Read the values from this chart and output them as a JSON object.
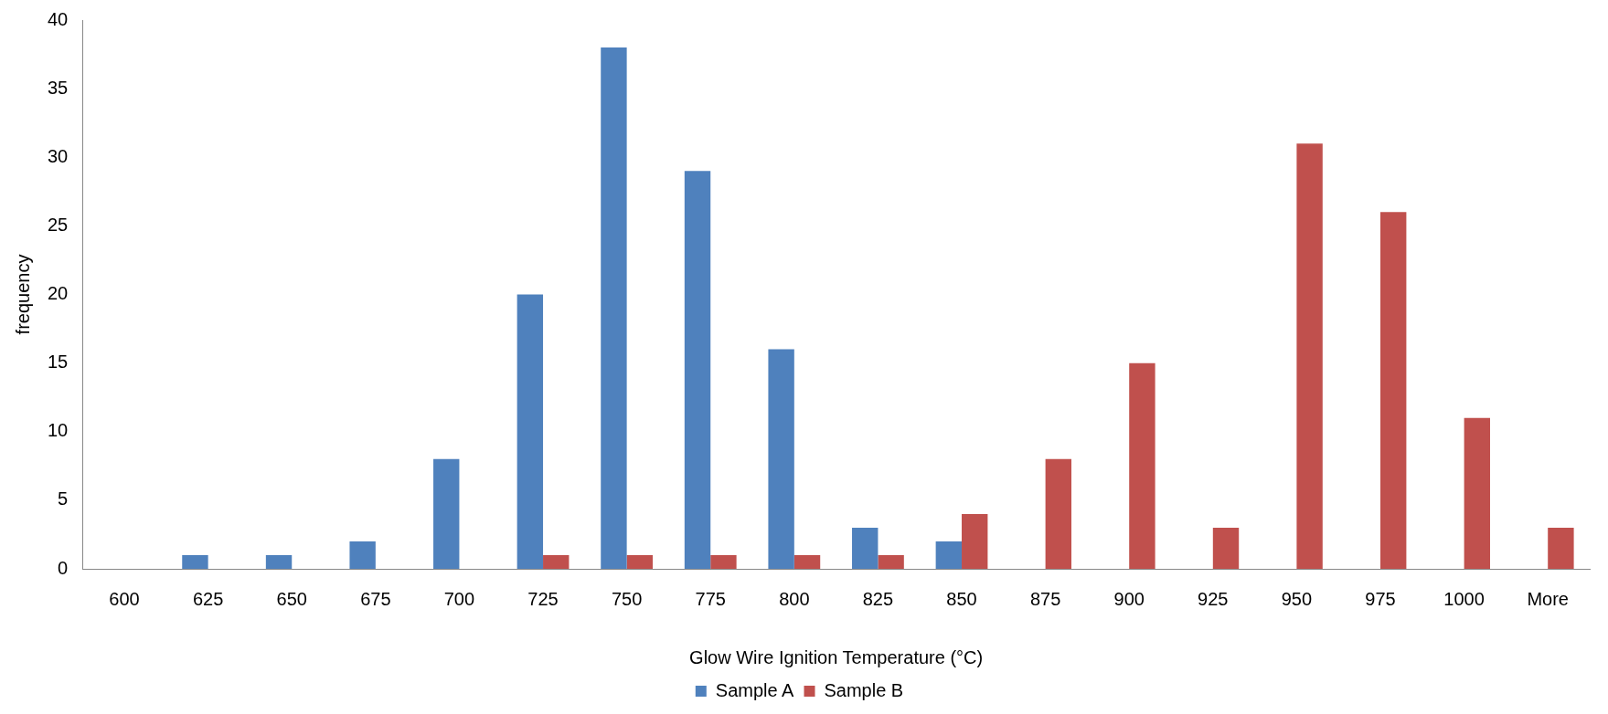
{
  "chart_data": {
    "type": "bar",
    "xlabel": "Glow Wire Ignition Temperature (°C)",
    "ylabel": "frequency",
    "categories": [
      "600",
      "625",
      "650",
      "675",
      "700",
      "725",
      "750",
      "775",
      "800",
      "825",
      "850",
      "875",
      "900",
      "925",
      "950",
      "975",
      "1000",
      "More"
    ],
    "series": [
      {
        "name": "Sample A",
        "color": "#4f81bd",
        "values": [
          0,
          1,
          1,
          2,
          8,
          20,
          38,
          29,
          16,
          3,
          2,
          0,
          0,
          0,
          0,
          0,
          0,
          0
        ]
      },
      {
        "name": "Sample B",
        "color": "#c0504d",
        "values": [
          0,
          0,
          0,
          0,
          0,
          1,
          1,
          1,
          1,
          1,
          4,
          8,
          15,
          3,
          31,
          26,
          11,
          3
        ]
      }
    ],
    "ylim": [
      0,
      40
    ],
    "yticks": [
      0,
      5,
      10,
      15,
      20,
      25,
      30,
      35,
      40
    ],
    "grid": false,
    "legend": "bottom"
  }
}
